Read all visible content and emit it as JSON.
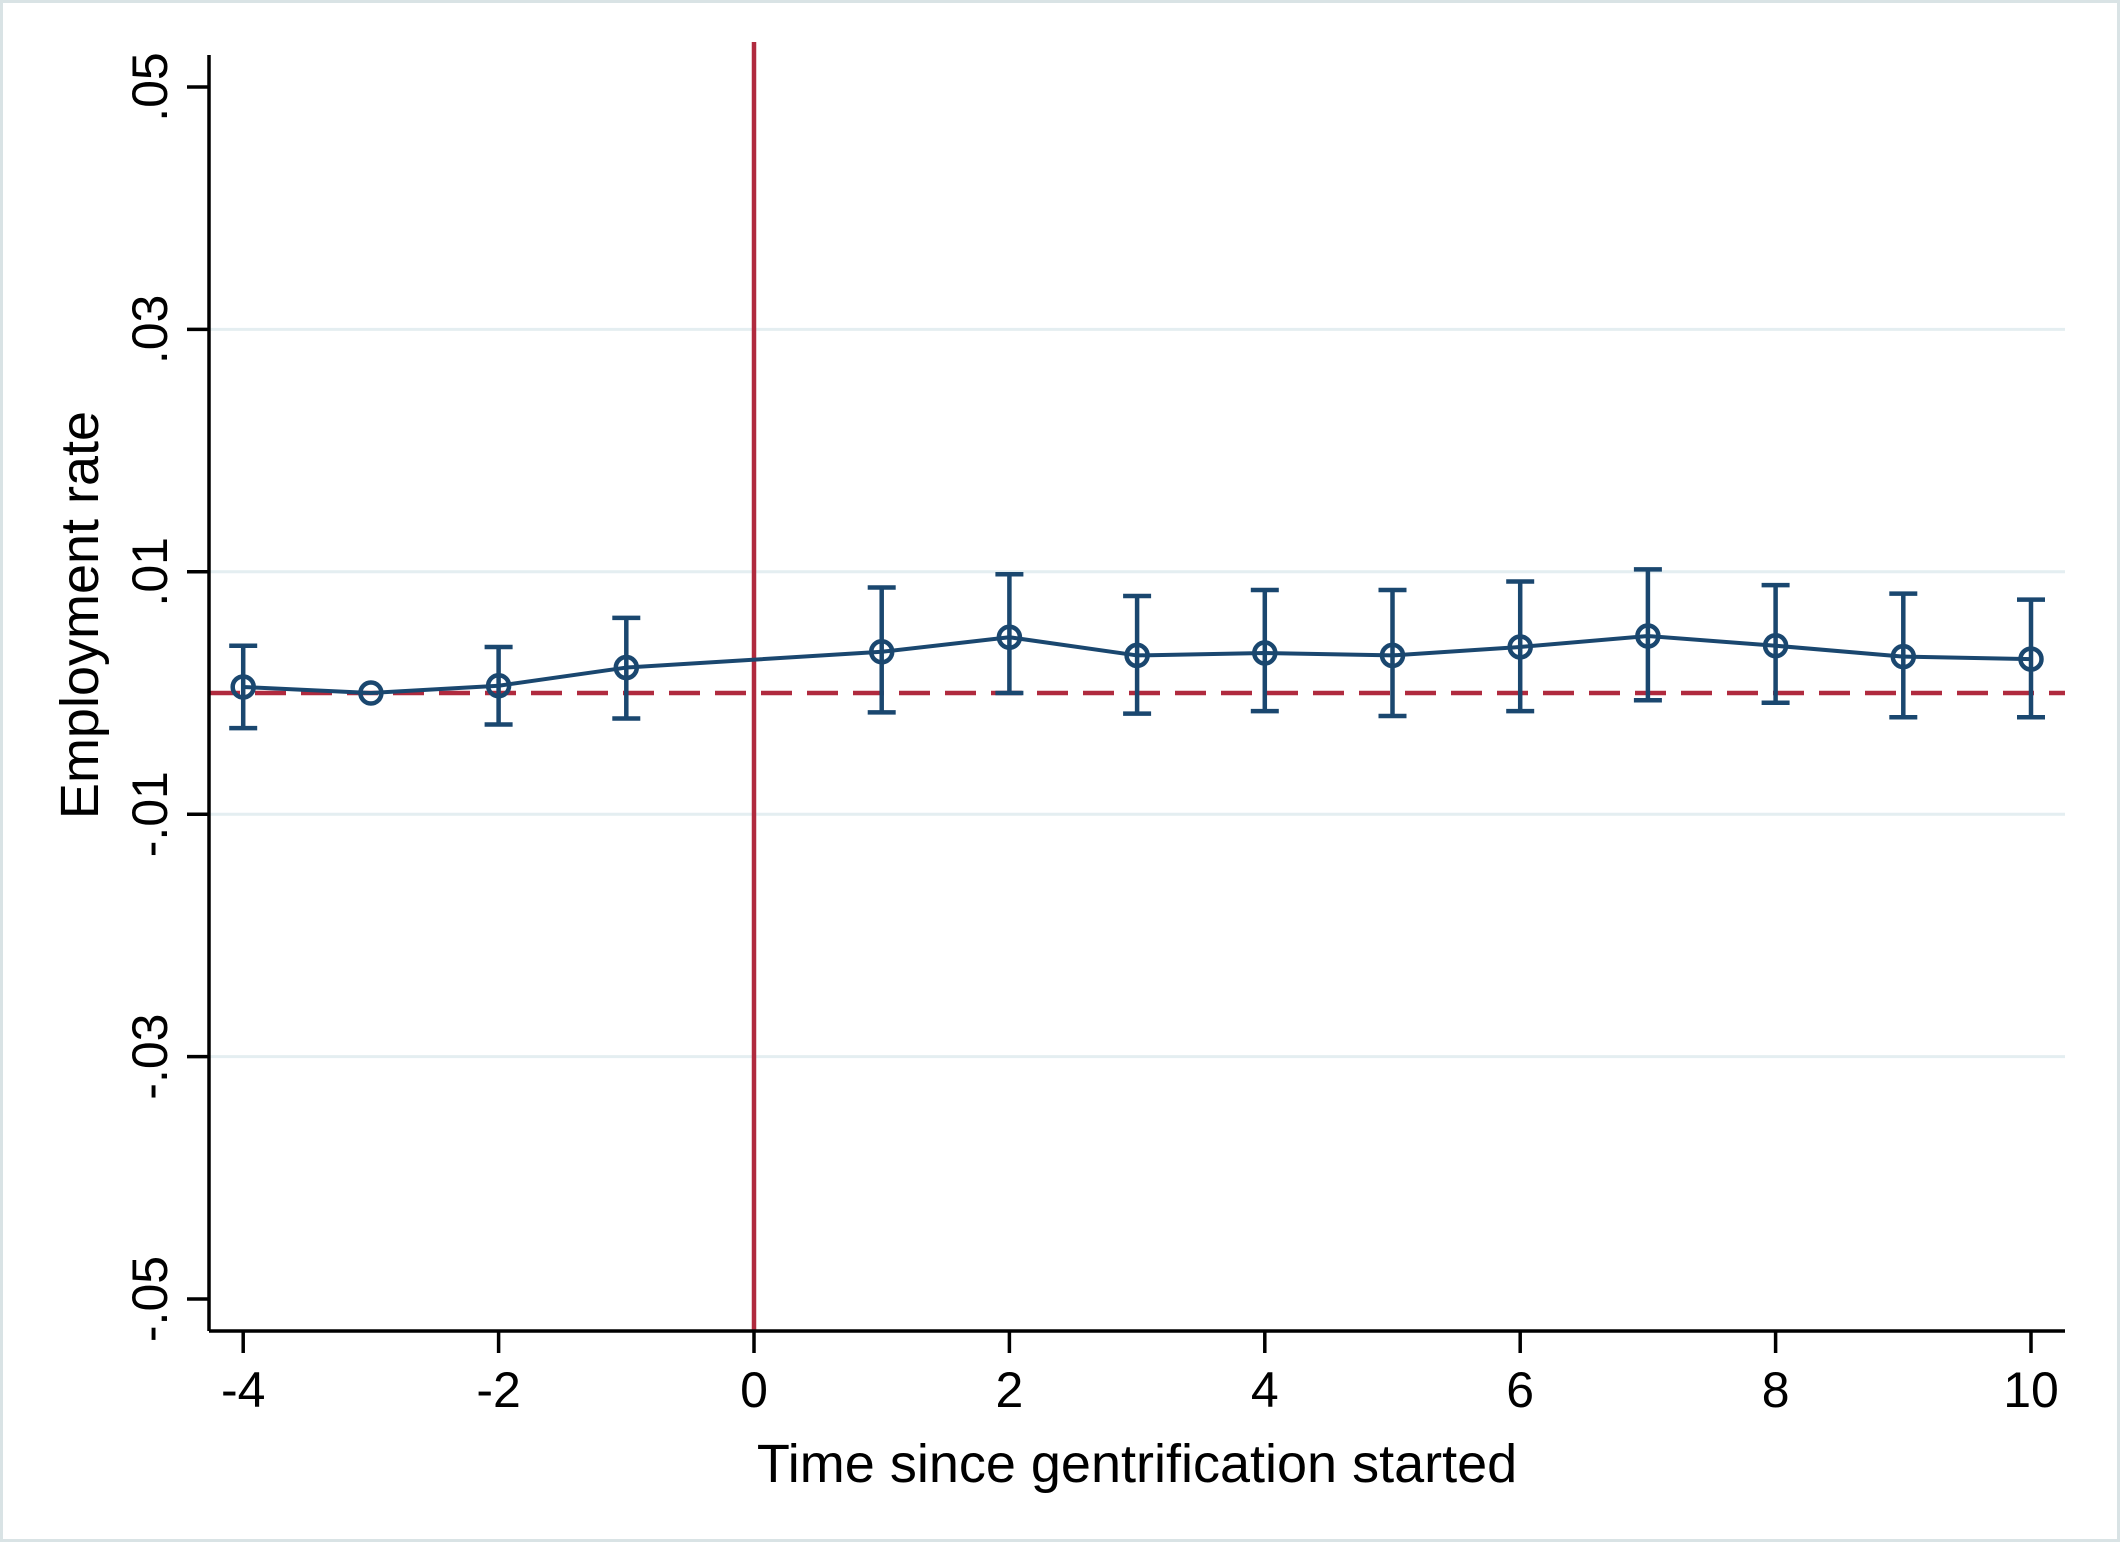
{
  "chart_data": {
    "type": "scatter",
    "subtype": "event-study-errorbar",
    "title": "",
    "xlabel": "Time since gentrification started",
    "ylabel": "Employment rate",
    "xlim": [
      -4.35,
      10.35
    ],
    "ylim": [
      -0.0527,
      0.0527
    ],
    "x_ticks": [
      -4,
      -2,
      0,
      2,
      4,
      6,
      8,
      10
    ],
    "x_tick_labels": [
      "-4",
      "-2",
      "0",
      "2",
      "4",
      "6",
      "8",
      "10"
    ],
    "y_ticks": [
      0.05,
      0.03,
      0.01,
      -0.01,
      -0.03,
      -0.05
    ],
    "y_tick_labels": [
      ".05",
      ".03",
      ".01",
      "-.01",
      "-.03",
      "-.05"
    ],
    "grid_y": [
      0.03,
      0.01,
      -0.01,
      -0.03
    ],
    "grid_on": true,
    "legend": "none",
    "reference_lines": {
      "horizontal": {
        "y": 0,
        "style": "dashed",
        "color": "#b02a3e"
      },
      "vertical": {
        "x": 0,
        "style": "solid",
        "color": "#b02a3e"
      }
    },
    "series": [
      {
        "name": "coefficient",
        "marker": "open-circle",
        "color": "#1a476f",
        "points": [
          {
            "x": -4,
            "y": 0.0005,
            "lo": -0.0029,
            "hi": 0.0039
          },
          {
            "x": -3,
            "y": 0.0,
            "lo": null,
            "hi": null
          },
          {
            "x": -2,
            "y": 0.0006,
            "lo": -0.0026,
            "hi": 0.0038
          },
          {
            "x": -1,
            "y": 0.0021,
            "lo": -0.0021,
            "hi": 0.0062
          },
          {
            "x": 1,
            "y": 0.0034,
            "lo": -0.0016,
            "hi": 0.0087
          },
          {
            "x": 2,
            "y": 0.0046,
            "lo": 0.0,
            "hi": 0.0098
          },
          {
            "x": 3,
            "y": 0.0031,
            "lo": -0.0017,
            "hi": 0.008
          },
          {
            "x": 4,
            "y": 0.0033,
            "lo": -0.0015,
            "hi": 0.0085
          },
          {
            "x": 5,
            "y": 0.0031,
            "lo": -0.0019,
            "hi": 0.0085
          },
          {
            "x": 6,
            "y": 0.0038,
            "lo": -0.0015,
            "hi": 0.0092
          },
          {
            "x": 7,
            "y": 0.0047,
            "lo": -0.0006,
            "hi": 0.0102
          },
          {
            "x": 8,
            "y": 0.0039,
            "lo": -0.0008,
            "hi": 0.0089
          },
          {
            "x": 9,
            "y": 0.003,
            "lo": -0.002,
            "hi": 0.0082
          },
          {
            "x": 10,
            "y": 0.0028,
            "lo": -0.002,
            "hi": 0.0077
          }
        ]
      }
    ],
    "colors": {
      "series": "#1a476f",
      "reference": "#b02a3e",
      "grid": "#e4eef1",
      "axis": "#000000",
      "figure_border": "#d9e3e5",
      "background": "#ffffff"
    }
  }
}
